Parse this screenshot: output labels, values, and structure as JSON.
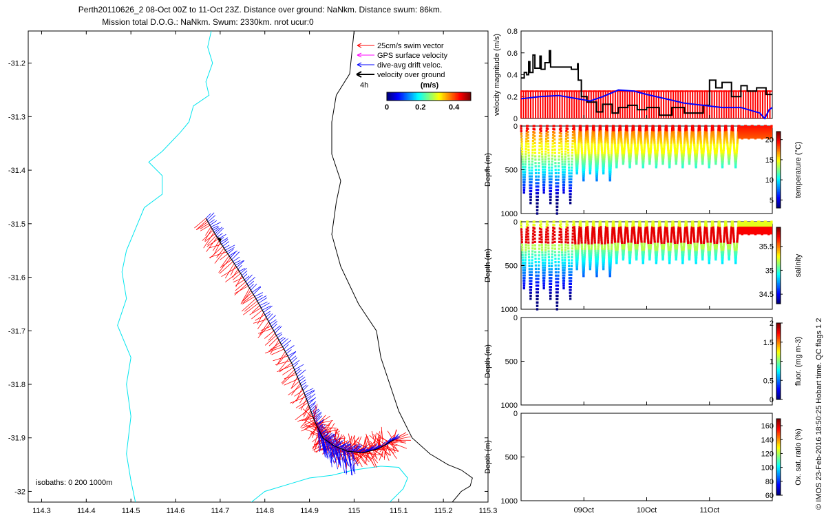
{
  "header": {
    "title_line1": "Perth20110626_2 08-Oct 00Z to 11-Oct 23Z. Distance over ground: NaNkm. Distance swum: 86km.",
    "title_line2": "Mission total D.O.G.: NaNkm. Swum: 2330km. nrot ucur:0"
  },
  "credit": "© IMOS 23-Feb-2016 18:50:25 Hobart time. QC flags 1  2",
  "colors": {
    "swim": "#ff0000",
    "gps": "#ff00ff",
    "drift": "#0000ff",
    "ground": "#000000",
    "isobath_200": "#00e5ee",
    "isobath_1000": "#000000"
  },
  "chart_data": [
    {
      "type": "scatter",
      "name": "glider-track-map",
      "xlabel": "",
      "ylabel": "",
      "xlim": [
        114.27,
        115.3
      ],
      "ylim": [
        -32.02,
        -31.14
      ],
      "xticks": [
        114.3,
        114.4,
        114.5,
        114.6,
        114.7,
        114.8,
        114.9,
        115.0,
        115.1,
        115.2,
        115.3
      ],
      "xtick_labels": [
        "114.3",
        "114.4",
        "114.5",
        "114.6",
        "114.7",
        "114.8",
        "114.9",
        "115",
        "115.1",
        "115.2",
        "115.3"
      ],
      "yticks": [
        -31.2,
        -31.3,
        -31.4,
        -31.5,
        -31.6,
        -31.7,
        -31.8,
        -31.9,
        -32.0
      ],
      "ytick_labels": [
        "-31.2",
        "-31.3",
        "-31.4",
        "-31.5",
        "-31.6",
        "-31.7",
        "-31.8",
        "-31.9",
        "-32"
      ],
      "legend": [
        "25cm/s swim vector",
        "GPS surface velocity",
        "dive-avg drift veloc.",
        "velocity over ground"
      ],
      "legend_note": "4h",
      "colorbar": {
        "title": "(m/s)",
        "ticks": [
          "0",
          "0.2",
          "0.4"
        ],
        "range": [
          0,
          0.5
        ]
      },
      "isobath_note": "isobaths: 0   200  1000m",
      "track": [
        [
          114.668,
          -31.49
        ],
        [
          114.7,
          -31.535
        ],
        [
          114.74,
          -31.585
        ],
        [
          114.78,
          -31.64
        ],
        [
          114.82,
          -31.7
        ],
        [
          114.86,
          -31.76
        ],
        [
          114.89,
          -31.82
        ],
        [
          114.912,
          -31.87
        ],
        [
          114.93,
          -31.9
        ],
        [
          114.955,
          -31.915
        ],
        [
          114.985,
          -31.925
        ],
        [
          115.02,
          -31.928
        ],
        [
          115.055,
          -31.92
        ],
        [
          115.09,
          -31.903
        ]
      ],
      "isobath_200m": [
        [
          114.68,
          -31.14
        ],
        [
          114.672,
          -31.17
        ],
        [
          114.683,
          -31.2
        ],
        [
          114.668,
          -31.235
        ],
        [
          114.675,
          -31.26
        ],
        [
          114.64,
          -31.28
        ],
        [
          114.63,
          -31.31
        ],
        [
          114.61,
          -31.33
        ],
        [
          114.57,
          -31.365
        ],
        [
          114.54,
          -31.385
        ],
        [
          114.57,
          -31.41
        ],
        [
          114.57,
          -31.445
        ],
        [
          114.53,
          -31.47
        ],
        [
          114.51,
          -31.51
        ],
        [
          114.49,
          -31.55
        ],
        [
          114.48,
          -31.59
        ],
        [
          114.49,
          -31.64
        ],
        [
          114.47,
          -31.69
        ],
        [
          114.5,
          -31.75
        ],
        [
          114.49,
          -31.8
        ],
        [
          114.5,
          -31.86
        ],
        [
          114.49,
          -31.93
        ],
        [
          114.5,
          -31.98
        ],
        [
          114.51,
          -32.02
        ]
      ],
      "isobath_200m_b": [
        [
          114.77,
          -32.02
        ],
        [
          114.8,
          -32.0
        ],
        [
          114.86,
          -31.985
        ],
        [
          114.9,
          -31.975
        ],
        [
          114.95,
          -31.97
        ],
        [
          115.0,
          -31.96
        ],
        [
          115.06,
          -31.953
        ],
        [
          115.1,
          -31.955
        ],
        [
          115.12,
          -31.975
        ],
        [
          115.11,
          -31.995
        ],
        [
          115.08,
          -32.02
        ]
      ],
      "isobath_1000m": [
        [
          115.0,
          -31.14
        ],
        [
          114.995,
          -31.18
        ],
        [
          114.99,
          -31.22
        ],
        [
          114.96,
          -31.26
        ],
        [
          114.95,
          -31.31
        ],
        [
          114.95,
          -31.37
        ],
        [
          114.97,
          -31.42
        ],
        [
          114.96,
          -31.46
        ],
        [
          114.95,
          -31.52
        ],
        [
          114.97,
          -31.58
        ],
        [
          115.01,
          -31.65
        ],
        [
          115.05,
          -31.7
        ],
        [
          115.06,
          -31.75
        ],
        [
          115.08,
          -31.8
        ],
        [
          115.1,
          -31.85
        ],
        [
          115.13,
          -31.9
        ],
        [
          115.17,
          -31.93
        ],
        [
          115.21,
          -31.95
        ],
        [
          115.24,
          -31.96
        ],
        [
          115.265,
          -31.975
        ],
        [
          115.26,
          -31.99
        ],
        [
          115.24,
          -32.0
        ],
        [
          115.22,
          -32.02
        ]
      ]
    },
    {
      "type": "line",
      "name": "velocity-magnitude",
      "ylabel": "velocity magnitude (m/s)",
      "ylim": [
        0,
        0.8
      ],
      "yticks": [
        "0",
        "0.2",
        "0.4",
        "0.6",
        "0.8"
      ],
      "x_days": [
        0,
        4
      ],
      "series": [
        {
          "name": "velocity over ground",
          "color": "#000000",
          "points": [
            [
              0,
              0.37
            ],
            [
              0.05,
              0.37
            ],
            [
              0.05,
              0.42
            ],
            [
              0.09,
              0.42
            ],
            [
              0.09,
              0.4
            ],
            [
              0.12,
              0.4
            ],
            [
              0.12,
              0.52
            ],
            [
              0.14,
              0.52
            ],
            [
              0.14,
              0.42
            ],
            [
              0.19,
              0.42
            ],
            [
              0.19,
              0.58
            ],
            [
              0.22,
              0.58
            ],
            [
              0.22,
              0.46
            ],
            [
              0.3,
              0.46
            ],
            [
              0.3,
              0.57
            ],
            [
              0.32,
              0.57
            ],
            [
              0.32,
              0.45
            ],
            [
              0.38,
              0.45
            ],
            [
              0.38,
              0.51
            ],
            [
              0.45,
              0.51
            ],
            [
              0.45,
              0.62
            ],
            [
              0.47,
              0.62
            ],
            [
              0.47,
              0.47
            ],
            [
              0.8,
              0.47
            ],
            [
              0.8,
              0.45
            ],
            [
              0.9,
              0.45
            ],
            [
              0.9,
              0.5
            ],
            [
              0.91,
              0.5
            ],
            [
              0.91,
              0.35
            ],
            [
              0.96,
              0.35
            ],
            [
              0.96,
              0.2
            ],
            [
              1.05,
              0.2
            ],
            [
              1.05,
              0.15
            ],
            [
              1.2,
              0.15
            ],
            [
              1.2,
              0.06
            ],
            [
              1.3,
              0.06
            ],
            [
              1.3,
              0.13
            ],
            [
              1.45,
              0.13
            ],
            [
              1.45,
              0.05
            ],
            [
              1.55,
              0.05
            ],
            [
              1.55,
              0.1
            ],
            [
              1.7,
              0.1
            ],
            [
              1.7,
              0.12
            ],
            [
              1.85,
              0.12
            ],
            [
              1.85,
              0.08
            ],
            [
              2.0,
              0.08
            ],
            [
              2.0,
              0.1
            ],
            [
              2.2,
              0.1
            ],
            [
              2.2,
              0.03
            ],
            [
              2.4,
              0.03
            ],
            [
              2.4,
              0.1
            ],
            [
              2.6,
              0.1
            ],
            [
              2.6,
              0.05
            ],
            [
              2.9,
              0.05
            ],
            [
              2.9,
              0.12
            ],
            [
              3.0,
              0.12
            ],
            [
              3.0,
              0.35
            ],
            [
              3.1,
              0.35
            ],
            [
              3.1,
              0.28
            ],
            [
              3.2,
              0.28
            ],
            [
              3.2,
              0.33
            ],
            [
              3.35,
              0.33
            ],
            [
              3.35,
              0.2
            ],
            [
              3.5,
              0.2
            ],
            [
              3.5,
              0.3
            ],
            [
              3.6,
              0.3
            ],
            [
              3.6,
              0.25
            ],
            [
              3.75,
              0.25
            ],
            [
              3.75,
              0.28
            ],
            [
              3.9,
              0.28
            ],
            [
              3.9,
              0.22
            ],
            [
              4.0,
              0.22
            ]
          ]
        },
        {
          "name": "dive-avg drift veloc.",
          "color": "#0000ff",
          "points": [
            [
              0,
              0.18
            ],
            [
              0.3,
              0.2
            ],
            [
              0.6,
              0.21
            ],
            [
              0.9,
              0.18
            ],
            [
              1.1,
              0.16
            ],
            [
              1.3,
              0.2
            ],
            [
              1.55,
              0.26
            ],
            [
              1.8,
              0.25
            ],
            [
              2.0,
              0.22
            ],
            [
              2.3,
              0.18
            ],
            [
              2.6,
              0.14
            ],
            [
              2.9,
              0.12
            ],
            [
              3.2,
              0.1
            ],
            [
              3.5,
              0.1
            ],
            [
              3.8,
              0.05
            ],
            [
              3.88,
              0.0
            ],
            [
              3.95,
              0.08
            ],
            [
              4.0,
              0.1
            ]
          ]
        },
        {
          "name": "25cm/s swim vector",
          "color": "#ff0000",
          "cap": 0.25,
          "n_dives": 52
        }
      ]
    },
    {
      "type": "heatmap",
      "name": "temperature-section",
      "ylabel": "Depth (m)",
      "cbar_label": "temperature (°C)",
      "cbar_ticks": [
        "20",
        "15",
        "10",
        "5"
      ],
      "cbar_range": [
        3,
        22
      ],
      "ylim": [
        0,
        1000
      ],
      "yticks": [
        "0",
        "500",
        "1000"
      ]
    },
    {
      "type": "heatmap",
      "name": "salinity-section",
      "ylabel": "Depth (m)",
      "cbar_label": "salinity",
      "cbar_ticks": [
        "35.5",
        "35",
        "34.5"
      ],
      "cbar_range": [
        34.3,
        35.9
      ],
      "ylim": [
        0,
        1000
      ],
      "yticks": [
        "0",
        "500",
        "1000"
      ]
    },
    {
      "type": "heatmap",
      "name": "fluorescence-section",
      "ylabel": "Depth (m)",
      "cbar_label": "fluor. (mg m-3)",
      "cbar_ticks": [
        "2",
        "1.5",
        "1",
        "0.5",
        "0"
      ],
      "cbar_range": [
        0,
        2
      ],
      "ylim": [
        0,
        1000
      ],
      "yticks": [
        "0",
        "500",
        "1000"
      ]
    },
    {
      "type": "heatmap",
      "name": "oxygen-section",
      "ylabel": "Depth (m)",
      "cbar_label": "Ox. sat. ratio (%)",
      "cbar_ticks": [
        "160",
        "140",
        "120",
        "100",
        "80",
        "60"
      ],
      "cbar_range": [
        60,
        170
      ],
      "ylim": [
        0,
        1000
      ],
      "yticks": [
        "0",
        "500",
        "1000"
      ]
    },
    {
      "type": "timeaxis",
      "name": "time-axis",
      "labels": [
        "09Oct",
        "10Oct",
        "11Oct"
      ],
      "days": [
        1,
        2,
        3
      ]
    }
  ]
}
